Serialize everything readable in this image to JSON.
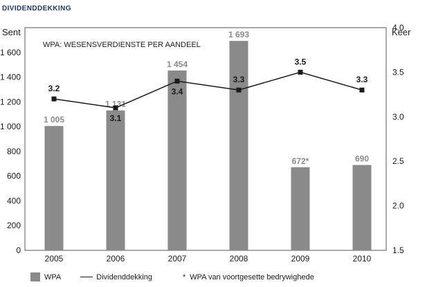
{
  "page_title": "DIVIDENDDEKKING",
  "chart_data": {
    "type": "bar+line",
    "note": "WPA: WESENSVERDIENSTE PER AANDEEL",
    "categories": [
      "2005",
      "2006",
      "2007",
      "2008",
      "2009",
      "2010"
    ],
    "y_left": {
      "label": "Sent",
      "ylim": [
        0,
        1800
      ],
      "ticks": [
        0,
        200,
        400,
        600,
        800,
        1000,
        1200,
        1400,
        1600
      ]
    },
    "y_right": {
      "label": "Keer",
      "ylim": [
        1.5,
        4.0
      ],
      "ticks": [
        "1.5",
        "2.0",
        "2.5",
        "3.0",
        "3.5",
        "4.0"
      ]
    },
    "series": [
      {
        "name": "WPA",
        "kind": "bar",
        "axis": "left",
        "color": "#8a8a8a",
        "values": [
          1005,
          1131,
          1454,
          1693,
          672,
          690
        ],
        "labels": [
          "1 005",
          "1 131",
          "1 454",
          "1 693",
          "672*",
          "690"
        ]
      },
      {
        "name": "Dividenddekking",
        "kind": "line",
        "axis": "right",
        "color": "#1a1a1a",
        "values": [
          3.2,
          3.1,
          3.4,
          3.3,
          3.5,
          3.3
        ],
        "labels": [
          "3.2",
          "3.1",
          "3.4",
          "3.3",
          "3.5",
          "3.3"
        ],
        "label_position": [
          "above",
          "below",
          "below",
          "above",
          "above",
          "above"
        ]
      }
    ],
    "tick_labels_left": [
      "0",
      "200",
      "400",
      "600",
      "800",
      "1 000",
      "1 200",
      "1 400",
      "1 600"
    ],
    "legend": {
      "position": "bottom",
      "items": [
        "WPA",
        "Dividenddekking"
      ],
      "footnote_symbol": "*",
      "footnote": "WPA van voortgesette bedrywighede"
    },
    "grid": false
  }
}
